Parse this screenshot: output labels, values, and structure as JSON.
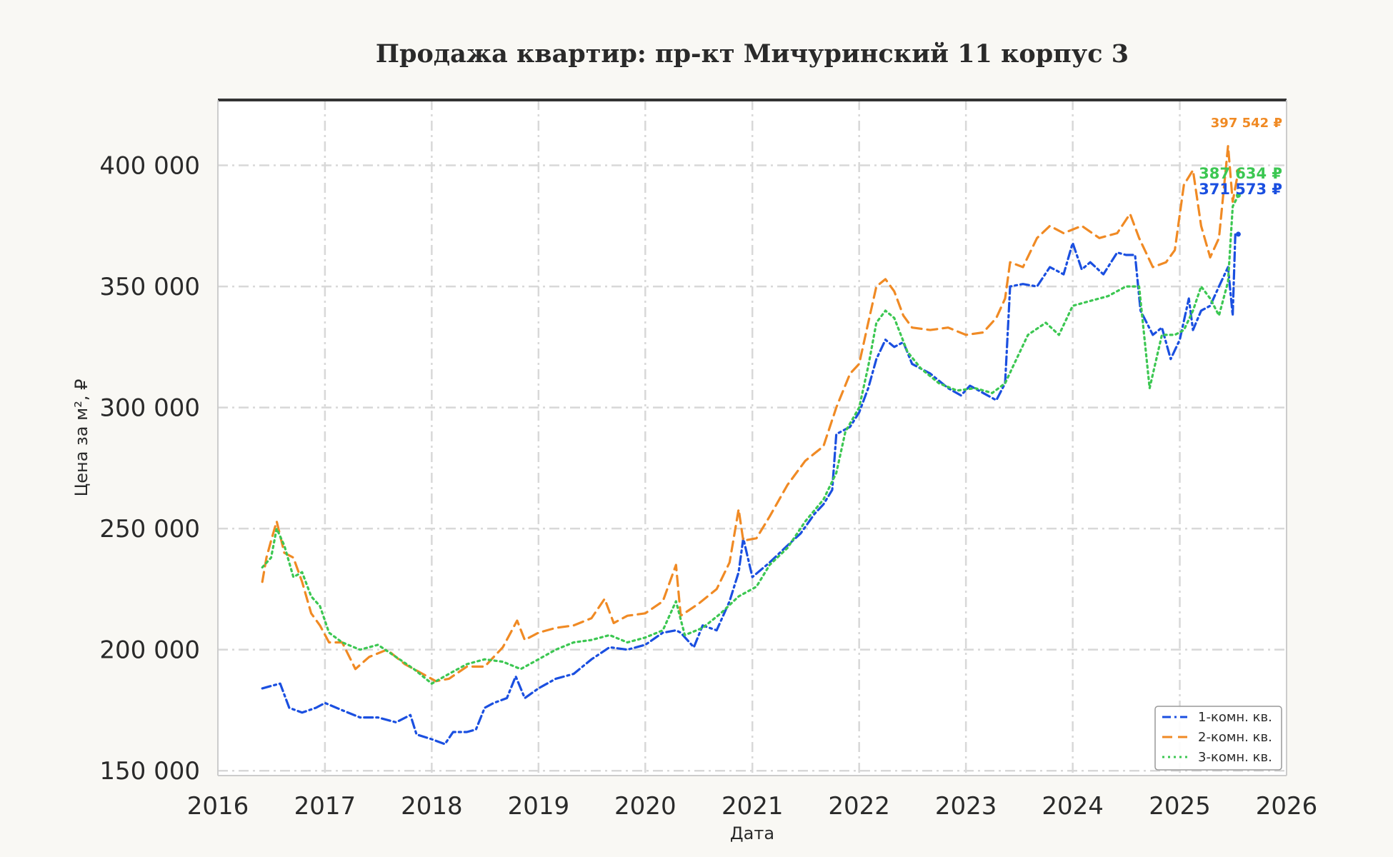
{
  "chart_data": {
    "type": "line",
    "title": "Продажа квартир: пр-кт Мичуринский 11 корпус 3",
    "xlabel": "Дата",
    "ylabel": "Цена за м², ₽",
    "xlim": [
      "2016-01-01",
      "2026-01-01"
    ],
    "ylim": [
      148000,
      427000
    ],
    "x_ticks": [
      "2016",
      "2017",
      "2018",
      "2019",
      "2020",
      "2021",
      "2022",
      "2023",
      "2024",
      "2025",
      "2026"
    ],
    "y_ticks": [
      150000,
      200000,
      250000,
      300000,
      350000,
      400000
    ],
    "y_tick_labels": [
      "150 000",
      "200 000",
      "250 000",
      "300 000",
      "350 000",
      "400 000"
    ],
    "grid": true,
    "legend_position": "bottom-right",
    "series": [
      {
        "name": "1-комн. кв.",
        "color": "#1a4fe0",
        "style": "dashdot",
        "end_label": "371 573 ₽",
        "points": [
          [
            "2016-06-01",
            184000
          ],
          [
            "2016-07-01",
            185000
          ],
          [
            "2016-08-01",
            186000
          ],
          [
            "2016-09-01",
            176000
          ],
          [
            "2016-10-15",
            174000
          ],
          [
            "2016-12-01",
            176000
          ],
          [
            "2017-01-01",
            178000
          ],
          [
            "2017-03-01",
            175000
          ],
          [
            "2017-05-01",
            172000
          ],
          [
            "2017-07-01",
            172000
          ],
          [
            "2017-09-01",
            170000
          ],
          [
            "2017-10-20",
            173000
          ],
          [
            "2017-11-10",
            165000
          ],
          [
            "2018-01-01",
            163000
          ],
          [
            "2018-02-15",
            161000
          ],
          [
            "2018-03-15",
            166000
          ],
          [
            "2018-05-01",
            166000
          ],
          [
            "2018-06-01",
            167000
          ],
          [
            "2018-07-01",
            176000
          ],
          [
            "2018-08-01",
            178000
          ],
          [
            "2018-09-15",
            180000
          ],
          [
            "2018-10-15",
            189000
          ],
          [
            "2018-11-15",
            180000
          ],
          [
            "2019-01-01",
            184000
          ],
          [
            "2019-03-01",
            188000
          ],
          [
            "2019-05-01",
            190000
          ],
          [
            "2019-07-01",
            196000
          ],
          [
            "2019-09-01",
            201000
          ],
          [
            "2019-11-01",
            200000
          ],
          [
            "2020-01-01",
            202000
          ],
          [
            "2020-03-01",
            207000
          ],
          [
            "2020-04-15",
            208000
          ],
          [
            "2020-05-01",
            207000
          ],
          [
            "2020-06-15",
            201000
          ],
          [
            "2020-07-15",
            210000
          ],
          [
            "2020-09-01",
            208000
          ],
          [
            "2020-10-15",
            220000
          ],
          [
            "2020-11-15",
            232000
          ],
          [
            "2020-12-01",
            246000
          ],
          [
            "2021-01-01",
            230000
          ],
          [
            "2021-03-01",
            236000
          ],
          [
            "2021-05-01",
            243000
          ],
          [
            "2021-06-15",
            248000
          ],
          [
            "2021-08-01",
            256000
          ],
          [
            "2021-09-01",
            260000
          ],
          [
            "2021-10-01",
            266000
          ],
          [
            "2021-10-15",
            289000
          ],
          [
            "2021-12-01",
            292000
          ],
          [
            "2022-01-01",
            298000
          ],
          [
            "2022-02-01",
            308000
          ],
          [
            "2022-03-01",
            320000
          ],
          [
            "2022-04-01",
            328000
          ],
          [
            "2022-05-01",
            325000
          ],
          [
            "2022-06-01",
            327000
          ],
          [
            "2022-07-01",
            318000
          ],
          [
            "2022-09-01",
            314000
          ],
          [
            "2022-11-01",
            308000
          ],
          [
            "2022-12-15",
            305000
          ],
          [
            "2023-01-15",
            309000
          ],
          [
            "2023-03-01",
            306000
          ],
          [
            "2023-04-15",
            303000
          ],
          [
            "2023-05-15",
            310000
          ],
          [
            "2023-06-01",
            350000
          ],
          [
            "2023-07-15",
            351000
          ],
          [
            "2023-09-01",
            350000
          ],
          [
            "2023-10-15",
            358000
          ],
          [
            "2023-12-01",
            355000
          ],
          [
            "2024-01-01",
            368000
          ],
          [
            "2024-02-01",
            357000
          ],
          [
            "2024-03-01",
            360000
          ],
          [
            "2024-04-15",
            355000
          ],
          [
            "2024-06-01",
            364000
          ],
          [
            "2024-07-01",
            363000
          ],
          [
            "2024-08-01",
            363000
          ],
          [
            "2024-08-20",
            340000
          ],
          [
            "2024-10-01",
            330000
          ],
          [
            "2024-11-01",
            333000
          ],
          [
            "2024-12-01",
            320000
          ],
          [
            "2025-01-01",
            328000
          ],
          [
            "2025-02-01",
            345000
          ],
          [
            "2025-02-15",
            332000
          ],
          [
            "2025-03-15",
            340000
          ],
          [
            "2025-04-15",
            342000
          ],
          [
            "2025-05-15",
            350000
          ],
          [
            "2025-06-15",
            358000
          ],
          [
            "2025-07-01",
            338000
          ],
          [
            "2025-07-10",
            372000
          ],
          [
            "2025-07-20",
            371573
          ]
        ]
      },
      {
        "name": "2-комн. кв.",
        "color": "#f08a24",
        "style": "dashed",
        "end_label": "397 542 ₽",
        "points": [
          [
            "2016-06-01",
            228000
          ],
          [
            "2016-06-15",
            238000
          ],
          [
            "2016-07-01",
            245000
          ],
          [
            "2016-07-20",
            253000
          ],
          [
            "2016-08-15",
            240000
          ],
          [
            "2016-09-15",
            238000
          ],
          [
            "2016-10-15",
            228000
          ],
          [
            "2016-11-15",
            215000
          ],
          [
            "2016-12-15",
            210000
          ],
          [
            "2017-01-15",
            203000
          ],
          [
            "2017-03-01",
            203000
          ],
          [
            "2017-04-15",
            192000
          ],
          [
            "2017-06-01",
            197000
          ],
          [
            "2017-08-01",
            200000
          ],
          [
            "2017-10-01",
            194000
          ],
          [
            "2017-12-01",
            190000
          ],
          [
            "2018-01-15",
            187000
          ],
          [
            "2018-03-01",
            188000
          ],
          [
            "2018-05-01",
            193000
          ],
          [
            "2018-07-01",
            193000
          ],
          [
            "2018-09-01",
            201000
          ],
          [
            "2018-10-20",
            212000
          ],
          [
            "2018-11-15",
            204000
          ],
          [
            "2019-01-01",
            207000
          ],
          [
            "2019-03-01",
            209000
          ],
          [
            "2019-05-01",
            210000
          ],
          [
            "2019-07-01",
            213000
          ],
          [
            "2019-08-15",
            221000
          ],
          [
            "2019-09-15",
            211000
          ],
          [
            "2019-11-01",
            214000
          ],
          [
            "2020-01-01",
            215000
          ],
          [
            "2020-03-01",
            220000
          ],
          [
            "2020-04-15",
            235000
          ],
          [
            "2020-05-01",
            214000
          ],
          [
            "2020-07-01",
            219000
          ],
          [
            "2020-09-01",
            225000
          ],
          [
            "2020-10-15",
            236000
          ],
          [
            "2020-11-15",
            258000
          ],
          [
            "2020-12-01",
            245000
          ],
          [
            "2021-01-15",
            246000
          ],
          [
            "2021-03-01",
            255000
          ],
          [
            "2021-05-01",
            268000
          ],
          [
            "2021-07-01",
            278000
          ],
          [
            "2021-09-01",
            284000
          ],
          [
            "2021-10-15",
            300000
          ],
          [
            "2021-12-01",
            314000
          ],
          [
            "2022-01-01",
            318000
          ],
          [
            "2022-02-01",
            335000
          ],
          [
            "2022-03-01",
            350000
          ],
          [
            "2022-04-01",
            353000
          ],
          [
            "2022-05-01",
            348000
          ],
          [
            "2022-06-01",
            338000
          ],
          [
            "2022-07-01",
            333000
          ],
          [
            "2022-09-01",
            332000
          ],
          [
            "2022-11-01",
            333000
          ],
          [
            "2023-01-01",
            330000
          ],
          [
            "2023-03-01",
            331000
          ],
          [
            "2023-04-15",
            337000
          ],
          [
            "2023-05-15",
            345000
          ],
          [
            "2023-06-01",
            360000
          ],
          [
            "2023-07-15",
            358000
          ],
          [
            "2023-09-01",
            370000
          ],
          [
            "2023-10-15",
            375000
          ],
          [
            "2023-12-01",
            372000
          ],
          [
            "2024-02-01",
            375000
          ],
          [
            "2024-04-01",
            370000
          ],
          [
            "2024-06-01",
            372000
          ],
          [
            "2024-07-15",
            380000
          ],
          [
            "2024-08-15",
            370000
          ],
          [
            "2024-10-01",
            358000
          ],
          [
            "2024-11-15",
            360000
          ],
          [
            "2024-12-15",
            365000
          ],
          [
            "2025-01-15",
            392000
          ],
          [
            "2025-02-15",
            398000
          ],
          [
            "2025-03-15",
            375000
          ],
          [
            "2025-04-15",
            362000
          ],
          [
            "2025-05-15",
            370000
          ],
          [
            "2025-06-15",
            408000
          ],
          [
            "2025-07-01",
            385000
          ],
          [
            "2025-07-20",
            397542
          ]
        ]
      },
      {
        "name": "3-комн. кв.",
        "color": "#3cc752",
        "style": "dotted",
        "end_label": "387 634 ₽",
        "points": [
          [
            "2016-06-01",
            234000
          ],
          [
            "2016-07-01",
            238000
          ],
          [
            "2016-07-20",
            250000
          ],
          [
            "2016-08-15",
            243000
          ],
          [
            "2016-09-15",
            230000
          ],
          [
            "2016-10-15",
            232000
          ],
          [
            "2016-11-15",
            222000
          ],
          [
            "2016-12-15",
            218000
          ],
          [
            "2017-01-15",
            207000
          ],
          [
            "2017-03-01",
            203000
          ],
          [
            "2017-05-01",
            200000
          ],
          [
            "2017-07-01",
            202000
          ],
          [
            "2017-09-01",
            197000
          ],
          [
            "2017-11-01",
            192000
          ],
          [
            "2018-01-01",
            186000
          ],
          [
            "2018-03-01",
            190000
          ],
          [
            "2018-05-01",
            194000
          ],
          [
            "2018-07-01",
            196000
          ],
          [
            "2018-09-01",
            195000
          ],
          [
            "2018-11-01",
            192000
          ],
          [
            "2019-01-01",
            196000
          ],
          [
            "2019-03-01",
            200000
          ],
          [
            "2019-05-01",
            203000
          ],
          [
            "2019-07-01",
            204000
          ],
          [
            "2019-09-01",
            206000
          ],
          [
            "2019-11-01",
            203000
          ],
          [
            "2020-01-01",
            205000
          ],
          [
            "2020-03-01",
            208000
          ],
          [
            "2020-04-15",
            220000
          ],
          [
            "2020-05-15",
            206000
          ],
          [
            "2020-07-15",
            209000
          ],
          [
            "2020-09-15",
            215000
          ],
          [
            "2020-11-15",
            222000
          ],
          [
            "2021-01-15",
            226000
          ],
          [
            "2021-03-01",
            235000
          ],
          [
            "2021-05-01",
            242000
          ],
          [
            "2021-07-01",
            253000
          ],
          [
            "2021-09-01",
            262000
          ],
          [
            "2021-10-15",
            273000
          ],
          [
            "2021-11-15",
            290000
          ],
          [
            "2022-01-01",
            300000
          ],
          [
            "2022-02-01",
            317000
          ],
          [
            "2022-03-01",
            335000
          ],
          [
            "2022-04-01",
            340000
          ],
          [
            "2022-05-01",
            337000
          ],
          [
            "2022-06-15",
            323000
          ],
          [
            "2022-08-01",
            316000
          ],
          [
            "2022-10-01",
            310000
          ],
          [
            "2022-12-01",
            307000
          ],
          [
            "2023-02-01",
            308000
          ],
          [
            "2023-04-01",
            306000
          ],
          [
            "2023-05-15",
            310000
          ],
          [
            "2023-06-15",
            318000
          ],
          [
            "2023-08-01",
            330000
          ],
          [
            "2023-10-01",
            335000
          ],
          [
            "2023-11-15",
            330000
          ],
          [
            "2024-01-01",
            342000
          ],
          [
            "2024-03-01",
            344000
          ],
          [
            "2024-05-01",
            346000
          ],
          [
            "2024-07-01",
            350000
          ],
          [
            "2024-08-15",
            350000
          ],
          [
            "2024-09-20",
            308000
          ],
          [
            "2024-11-01",
            330000
          ],
          [
            "2024-12-15",
            330000
          ],
          [
            "2025-01-15",
            332000
          ],
          [
            "2025-02-15",
            340000
          ],
          [
            "2025-03-15",
            350000
          ],
          [
            "2025-04-15",
            345000
          ],
          [
            "2025-05-15",
            338000
          ],
          [
            "2025-06-15",
            352000
          ],
          [
            "2025-07-01",
            383000
          ],
          [
            "2025-07-20",
            387634
          ]
        ]
      }
    ]
  }
}
